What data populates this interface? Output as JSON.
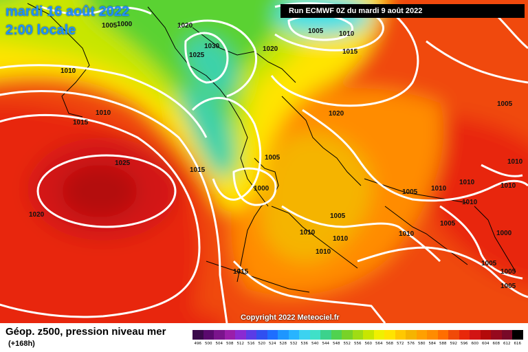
{
  "header": {
    "date": "mardi 16 août 2022",
    "time": "2:00 locale",
    "run": "Run ECMWF 0Z du mardi 9 août 2022"
  },
  "footer": {
    "title": "Géop. z500, pression niveau mer",
    "subtitle": "(+168h)",
    "copyright": "Copyright 2022 Meteociel.fr"
  },
  "colors": {
    "deep_red": "#b40a0a",
    "red": "#e8280a",
    "orange_red": "#f04a08",
    "orange": "#ff8c00",
    "yellow_orange": "#f5b400",
    "yellow": "#ffe400",
    "green_yellow": "#c8e600",
    "green": "#5ad232",
    "turquoise": "#3cd2aa",
    "cyan": "#40e0e6",
    "contour": "#ffffff",
    "coast": "#000000"
  },
  "legend": {
    "values": [
      "496",
      "500",
      "504",
      "508",
      "512",
      "516",
      "520",
      "524",
      "528",
      "532",
      "536",
      "540",
      "544",
      "548",
      "552",
      "556",
      "560",
      "564",
      "568",
      "572",
      "576",
      "580",
      "584",
      "588",
      "592",
      "596",
      "600",
      "604",
      "608",
      "612",
      "616"
    ],
    "colors": [
      "#3a0a4a",
      "#5a0a6e",
      "#7a148c",
      "#9a1eaa",
      "#8a2ad2",
      "#5a3ce6",
      "#3050f0",
      "#1e6eff",
      "#1e96ff",
      "#28b4ff",
      "#3cd2f0",
      "#40e0c8",
      "#3cd28c",
      "#50d250",
      "#78d228",
      "#a0dc14",
      "#c8e600",
      "#f0f000",
      "#ffe400",
      "#ffc800",
      "#f5b400",
      "#ffa000",
      "#ff8c00",
      "#ff6e00",
      "#f04a08",
      "#e8280a",
      "#d21414",
      "#b40a0a",
      "#960a1e",
      "#780a28",
      "#000000"
    ]
  },
  "isobars": [
    {
      "value": "1005"
    },
    {
      "value": "1000"
    },
    {
      "value": "1020"
    },
    {
      "value": "1025"
    },
    {
      "value": "1030"
    },
    {
      "value": "1020"
    },
    {
      "value": "1005"
    },
    {
      "value": "1010"
    },
    {
      "value": "1015"
    },
    {
      "value": "1010"
    },
    {
      "value": "1010"
    },
    {
      "value": "1015"
    },
    {
      "value": "1025"
    },
    {
      "value": "1020"
    },
    {
      "value": "1015"
    },
    {
      "value": "1020"
    },
    {
      "value": "1005"
    },
    {
      "value": "1000"
    },
    {
      "value": "1005"
    },
    {
      "value": "1010"
    },
    {
      "value": "1010"
    },
    {
      "value": "1010"
    },
    {
      "value": "1015"
    },
    {
      "value": "1005"
    },
    {
      "value": "1010"
    },
    {
      "value": "1010"
    },
    {
      "value": "1010"
    },
    {
      "value": "1005"
    },
    {
      "value": "1010"
    },
    {
      "value": "1000"
    },
    {
      "value": "1005"
    },
    {
      "value": "1005"
    },
    {
      "value": "1005"
    },
    {
      "value": "1005"
    },
    {
      "value": "1010"
    },
    {
      "value": "1010"
    }
  ]
}
